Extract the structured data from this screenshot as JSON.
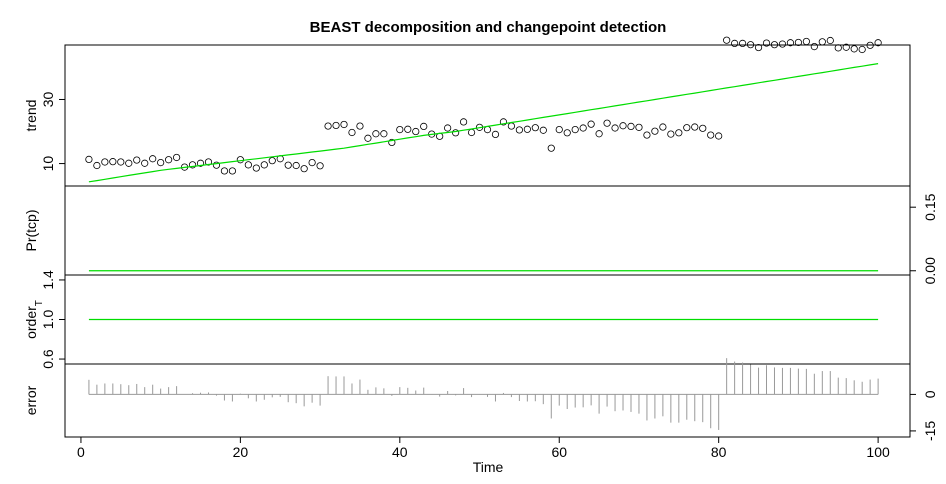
{
  "chart_data": {
    "type": "line",
    "title": "BEAST decomposition and changepoint detection",
    "xlabel": "Time",
    "xlim": [
      -2,
      104
    ],
    "x_ticks": [
      "0",
      "20",
      "40",
      "60",
      "80",
      "100"
    ],
    "x_tick_values": [
      0,
      20,
      40,
      60,
      80,
      100
    ],
    "x": [
      1,
      2,
      3,
      4,
      5,
      6,
      7,
      8,
      9,
      10,
      11,
      12,
      13,
      14,
      15,
      16,
      17,
      18,
      19,
      20,
      21,
      22,
      23,
      24,
      25,
      26,
      27,
      28,
      29,
      30,
      31,
      32,
      33,
      34,
      35,
      36,
      37,
      38,
      39,
      40,
      41,
      42,
      43,
      44,
      45,
      46,
      47,
      48,
      49,
      50,
      51,
      52,
      53,
      54,
      55,
      56,
      57,
      58,
      59,
      60,
      61,
      62,
      63,
      64,
      65,
      66,
      67,
      68,
      69,
      70,
      71,
      72,
      73,
      74,
      75,
      76,
      77,
      78,
      79,
      80,
      81,
      82,
      83,
      84,
      85,
      86,
      87,
      88,
      89,
      90,
      91,
      92,
      93,
      94,
      95,
      96,
      97,
      98,
      99,
      100
    ],
    "panels": [
      {
        "ylabel": "trend",
        "ylim": [
          3,
          47
        ],
        "y_ticks": [
          "10",
          "30"
        ],
        "y_tick_values": [
          10,
          30
        ],
        "y_tick_side": "left",
        "series": [
          {
            "type": "scatter",
            "marker": "open-circle",
            "color": "#000000",
            "values": [
              11.3,
              9.4,
              10.5,
              10.6,
              10.5,
              10.1,
              11.1,
              10.1,
              11.5,
              10.3,
              11.2,
              11.9,
              8.9,
              9.6,
              10.1,
              10.5,
              9.5,
              7.7,
              7.7,
              11.2,
              9.6,
              8.6,
              9.6,
              10.9,
              11.5,
              9.5,
              9.4,
              8.4,
              10.3,
              9.3,
              21.7,
              21.9,
              22.2,
              19.7,
              21.7,
              17.9,
              19.3,
              19.3,
              16.6,
              20.6,
              20.7,
              20.0,
              21.6,
              19.2,
              18.5,
              21.1,
              19.6,
              23.0,
              19.7,
              21.3,
              20.6,
              19.1,
              23.0,
              21.7,
              20.5,
              20.7,
              21.2,
              20.4,
              14.8,
              20.6,
              19.6,
              20.6,
              21.1,
              22.3,
              19.3,
              22.6,
              21.1,
              21.8,
              21.6,
              21.3,
              18.9,
              20.1,
              21.4,
              19.2,
              19.6,
              21.2,
              21.4,
              21.0,
              18.9,
              18.6,
              48.5,
              47.5,
              47.5,
              47.1,
              46.2,
              47.6,
              47.1,
              47.3,
              47.7,
              47.8,
              48.1,
              46.5,
              48.0,
              48.4,
              46.1,
              46.3,
              45.8,
              45.6,
              46.9,
              47.7
            ]
          },
          {
            "type": "line",
            "color": "#00dd00",
            "values": [
              4.3,
              4.7,
              5.1,
              5.5,
              5.9,
              6.3,
              6.7,
              7.1,
              7.5,
              7.9,
              8.2,
              8.5,
              8.8,
              9.1,
              9.4,
              9.7,
              10.0,
              10.3,
              10.6,
              10.9,
              11.2,
              11.5,
              11.8,
              12.1,
              12.4,
              12.7,
              13.0,
              13.3,
              13.6,
              13.9,
              14.2,
              14.5,
              14.8,
              15.2,
              15.6,
              16.0,
              16.4,
              16.8,
              17.2,
              17.6,
              18.0,
              18.4,
              18.8,
              19.1,
              19.4,
              19.7,
              20.0,
              20.4,
              20.8,
              21.2,
              21.6,
              22.0,
              22.4,
              22.8,
              23.2,
              23.6,
              24.0,
              24.4,
              24.8,
              25.2,
              25.6,
              26.0,
              26.4,
              26.8,
              27.2,
              27.6,
              28.0,
              28.4,
              28.8,
              29.2,
              29.6,
              30.0,
              30.4,
              30.8,
              31.2,
              31.6,
              32.0,
              32.4,
              32.8,
              33.2,
              33.6,
              34.0,
              34.4,
              34.8,
              35.2,
              35.6,
              36.0,
              36.4,
              36.8,
              37.2,
              37.6,
              38.0,
              38.4,
              38.8,
              39.2,
              39.6,
              40.0,
              40.4,
              40.8,
              41.2
            ]
          }
        ]
      },
      {
        "ylabel": "Pr(tcp)",
        "ylim": [
          -0.01,
          0.2
        ],
        "y_ticks": [
          "0.00",
          "0.15"
        ],
        "y_tick_values": [
          0,
          0.15
        ],
        "y_tick_side": "right",
        "series": [
          {
            "type": "line",
            "color": "#00dd00",
            "constant": 0
          }
        ]
      },
      {
        "ylabel": "order",
        "ylabel_subscript": "T",
        "ylim": [
          0.55,
          1.45
        ],
        "y_ticks": [
          "0.6",
          "1.0",
          "1.4"
        ],
        "y_tick_values": [
          0.6,
          1.0,
          1.4
        ],
        "y_tick_side": "left",
        "series": [
          {
            "type": "line",
            "color": "#00dd00",
            "constant": 1
          }
        ]
      },
      {
        "ylabel": "error",
        "ylim": [
          -17.5,
          12.5
        ],
        "y_ticks": [
          "-15",
          "0"
        ],
        "y_tick_values": [
          -15,
          0
        ],
        "y_tick_side": "right",
        "series": [
          {
            "type": "stem",
            "color": "#999999",
            "values": [
              6.0,
              4.0,
              4.5,
              4.5,
              4.2,
              3.8,
              4.3,
              3.0,
              4.0,
              2.4,
              3.0,
              3.4,
              0.0,
              0.5,
              0.7,
              0.8,
              -0.5,
              -2.5,
              -2.9,
              0.3,
              -1.6,
              -2.9,
              -2.2,
              -1.2,
              -1.0,
              -3.2,
              -3.6,
              -4.9,
              -3.4,
              -4.6,
              7.5,
              7.4,
              7.4,
              4.5,
              6.1,
              1.9,
              2.9,
              2.5,
              -0.6,
              3.0,
              2.7,
              1.6,
              2.8,
              0.1,
              -0.9,
              1.4,
              -0.4,
              2.6,
              -1.1,
              0.1,
              -1.0,
              -2.9,
              0.6,
              -1.1,
              -2.7,
              -2.9,
              -2.8,
              -4.0,
              -9.9,
              -4.6,
              -6.0,
              -5.4,
              -5.3,
              -4.5,
              -7.9,
              -5.0,
              -6.9,
              -6.6,
              -7.2,
              -7.9,
              -10.7,
              -9.9,
              -9.0,
              -11.6,
              -11.6,
              -10.4,
              -11.0,
              -11.4,
              -13.9,
              -14.6,
              14.9,
              13.5,
              13.1,
              12.3,
              11.0,
              12.0,
              11.1,
              10.9,
              10.9,
              10.6,
              10.5,
              8.5,
              9.6,
              9.6,
              6.9,
              6.7,
              5.8,
              5.2,
              6.1,
              6.5
            ]
          }
        ]
      }
    ],
    "grid": false,
    "legend": "none"
  }
}
